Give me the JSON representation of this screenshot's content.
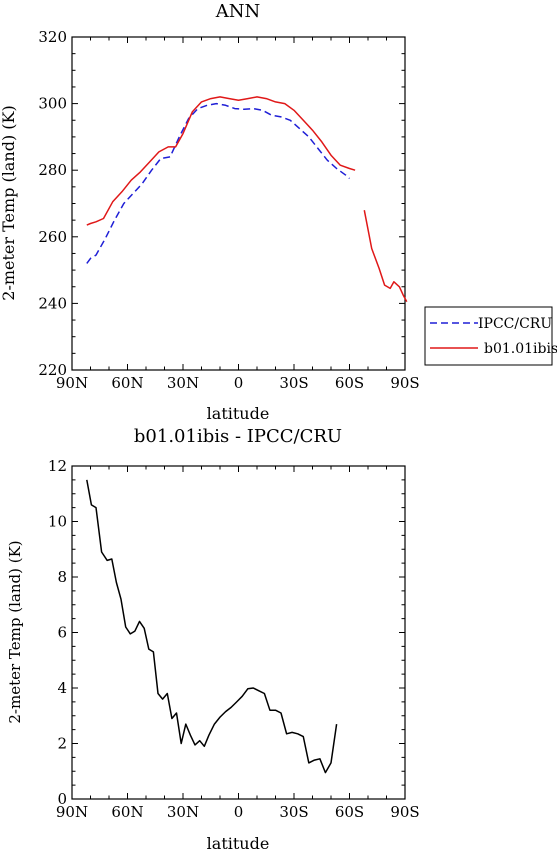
{
  "chart_data": [
    {
      "type": "line",
      "title": "ANN",
      "xlabel": "latitude",
      "ylabel": "2-meter Temp (land) (K)",
      "xlim": [
        90,
        -90
      ],
      "ylim": [
        220,
        320
      ],
      "xticks": [
        90,
        60,
        30,
        0,
        -30,
        -60,
        -90
      ],
      "xtick_labels": [
        "90N",
        "60N",
        "30N",
        "0",
        "30S",
        "60S",
        "90S"
      ],
      "yticks": [
        220,
        240,
        260,
        280,
        300,
        320
      ],
      "ytick_labels": [
        "220",
        "240",
        "260",
        "280",
        "300",
        "320"
      ],
      "legend": {
        "placement": "right"
      },
      "series": [
        {
          "name": "IPCC/CRU",
          "color": "#1f1fd6",
          "dash": "dashed",
          "segments": [
            [
              [
                82,
                252
              ],
              [
                80,
                253.5
              ],
              [
                77,
                254.5
              ],
              [
                72,
                259.5
              ],
              [
                67,
                265
              ],
              [
                62,
                270
              ],
              [
                57,
                273
              ],
              [
                52,
                276
              ],
              [
                47,
                280
              ],
              [
                42,
                283.5
              ],
              [
                37,
                284
              ],
              [
                32,
                290
              ],
              [
                27,
                295.5
              ],
              [
                22,
                298.5
              ],
              [
                17,
                299.5
              ],
              [
                12,
                300
              ],
              [
                7,
                299.5
              ],
              [
                2,
                298.5
              ],
              [
                -3,
                298.3
              ],
              [
                -8,
                298.5
              ],
              [
                -13,
                298
              ],
              [
                -18,
                296.5
              ],
              [
                -23,
                296
              ],
              [
                -28,
                295
              ],
              [
                -33,
                292.5
              ],
              [
                -38,
                290
              ],
              [
                -43,
                286.5
              ],
              [
                -48,
                283
              ],
              [
                -53,
                280.5
              ],
              [
                -58,
                278.5
              ],
              [
                -60,
                277.5
              ]
            ]
          ]
        },
        {
          "name": "b01.01ibis",
          "color": "#e01818",
          "dash": "solid",
          "segments": [
            [
              [
                82,
                263.5
              ],
              [
                80,
                264
              ],
              [
                77,
                264.5
              ],
              [
                73,
                265.5
              ],
              [
                68,
                270.5
              ],
              [
                63,
                273.5
              ],
              [
                58,
                277
              ],
              [
                53,
                279.5
              ],
              [
                48,
                282.5
              ],
              [
                43,
                285.5
              ],
              [
                38,
                287
              ],
              [
                34,
                287
              ],
              [
                30,
                291
              ],
              [
                25,
                297.5
              ],
              [
                20,
                300.5
              ],
              [
                15,
                301.5
              ],
              [
                10,
                302
              ],
              [
                5,
                301.5
              ],
              [
                0,
                301
              ],
              [
                -5,
                301.5
              ],
              [
                -10,
                302
              ],
              [
                -15,
                301.5
              ],
              [
                -20,
                300.5
              ],
              [
                -25,
                300
              ],
              [
                -30,
                298
              ],
              [
                -35,
                295
              ],
              [
                -40,
                292
              ],
              [
                -45,
                288.5
              ],
              [
                -50,
                284.5
              ],
              [
                -55,
                281.5
              ],
              [
                -60,
                280.5
              ],
              [
                -63,
                280
              ]
            ],
            [
              [
                -68,
                268
              ],
              [
                -72,
                256.5
              ],
              [
                -76,
                250.5
              ],
              [
                -79,
                245.5
              ],
              [
                -82,
                244.5
              ],
              [
                -84,
                246.5
              ],
              [
                -87,
                245
              ],
              [
                -89,
                242.5
              ],
              [
                -91,
                240.5
              ]
            ]
          ]
        }
      ]
    },
    {
      "type": "line",
      "title": "b01.01ibis - IPCC/CRU",
      "xlabel": "latitude",
      "ylabel": "2-meter Temp (land) (K)",
      "xlim": [
        90,
        -90
      ],
      "ylim": [
        0,
        12
      ],
      "xticks": [
        90,
        60,
        30,
        0,
        -30,
        -60,
        -90
      ],
      "xtick_labels": [
        "90N",
        "60N",
        "30N",
        "0",
        "30S",
        "60S",
        "90S"
      ],
      "yticks": [
        0,
        2,
        4,
        6,
        8,
        10,
        12
      ],
      "ytick_labels": [
        "0",
        "2",
        "4",
        "6",
        "8",
        "10",
        "12"
      ],
      "series": [
        {
          "color": "#000000",
          "dash": "solid",
          "segments": [
            [
              [
                82,
                11.5
              ],
              [
                79.5,
                10.6
              ],
              [
                77,
                10.5
              ],
              [
                74,
                8.9
              ],
              [
                71,
                8.6
              ],
              [
                68.5,
                8.65
              ],
              [
                66,
                7.8
              ],
              [
                63.5,
                7.2
              ],
              [
                61,
                6.2
              ],
              [
                58.5,
                5.95
              ],
              [
                56,
                6.05
              ],
              [
                53.5,
                6.4
              ],
              [
                51,
                6.15
              ],
              [
                48.5,
                5.4
              ],
              [
                46,
                5.3
              ],
              [
                43.5,
                3.8
              ],
              [
                41,
                3.6
              ],
              [
                38.5,
                3.8
              ],
              [
                36,
                2.9
              ],
              [
                33.5,
                3.1
              ],
              [
                31,
                2.0
              ],
              [
                28.5,
                2.7
              ],
              [
                26,
                2.3
              ],
              [
                23.5,
                1.95
              ],
              [
                21,
                2.1
              ],
              [
                18.5,
                1.9
              ],
              [
                16,
                2.3
              ],
              [
                13,
                2.7
              ],
              [
                10,
                2.95
              ],
              [
                7,
                3.15
              ],
              [
                4,
                3.3
              ],
              [
                1,
                3.5
              ],
              [
                -2,
                3.7
              ],
              [
                -5,
                3.97
              ],
              [
                -8,
                4.0
              ],
              [
                -11,
                3.9
              ],
              [
                -14,
                3.8
              ],
              [
                -17,
                3.2
              ],
              [
                -20,
                3.2
              ],
              [
                -23,
                3.1
              ],
              [
                -26,
                2.35
              ],
              [
                -29,
                2.4
              ],
              [
                -32,
                2.35
              ],
              [
                -35,
                2.25
              ],
              [
                -38,
                1.3
              ],
              [
                -41,
                1.4
              ],
              [
                -44,
                1.45
              ],
              [
                -47,
                0.95
              ],
              [
                -50,
                1.3
              ],
              [
                -53,
                2.7
              ]
            ]
          ]
        }
      ]
    }
  ]
}
